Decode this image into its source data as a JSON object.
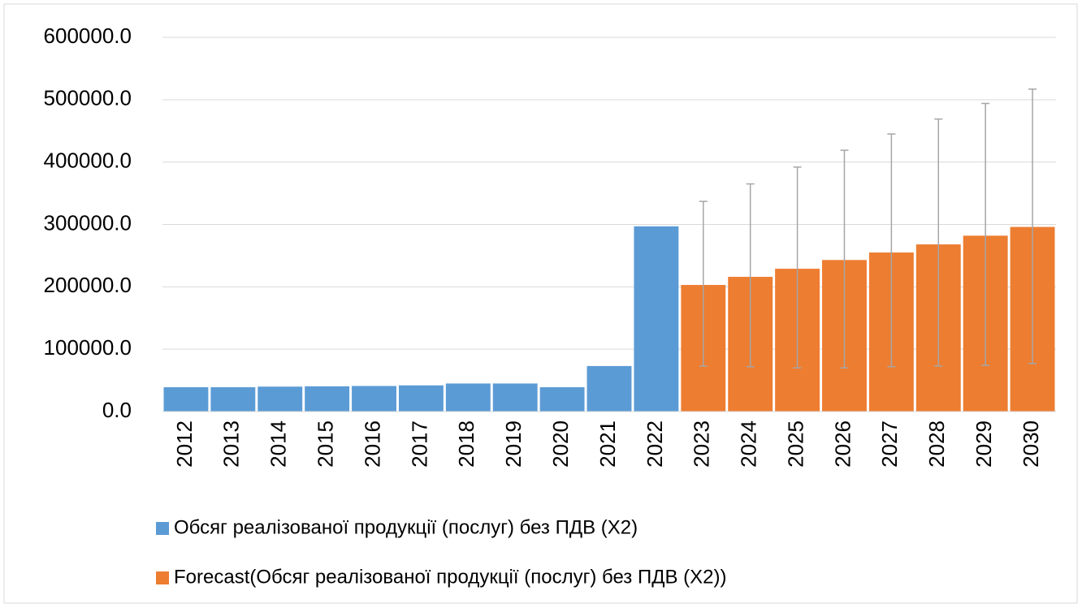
{
  "chart_data": {
    "type": "bar",
    "categories": [
      "2012",
      "2013",
      "2014",
      "2015",
      "2016",
      "2017",
      "2018",
      "2019",
      "2020",
      "2021",
      "2022",
      "2023",
      "2024",
      "2025",
      "2026",
      "2027",
      "2028",
      "2029",
      "2030"
    ],
    "series": [
      {
        "name": "Обсяг реалізованої продукції (послуг) без ПДВ (X2)",
        "color": "#5b9bd5",
        "values": [
          39000,
          39000,
          40000,
          40500,
          41000,
          42000,
          45000,
          45000,
          39000,
          73000,
          297000,
          null,
          null,
          null,
          null,
          null,
          null,
          null,
          null
        ]
      },
      {
        "name": "Forecast(Обсяг реалізованої продукції (послуг) без ПДВ (X2))",
        "color": "#ed7d31",
        "values": [
          null,
          null,
          null,
          null,
          null,
          null,
          null,
          null,
          null,
          null,
          null,
          203000,
          216000,
          229000,
          243000,
          255000,
          268000,
          282000,
          296000
        ],
        "error_low": [
          null,
          null,
          null,
          null,
          null,
          null,
          null,
          null,
          null,
          null,
          null,
          73000,
          72000,
          70000,
          70000,
          72000,
          73000,
          74000,
          77000
        ],
        "error_high": [
          null,
          null,
          null,
          null,
          null,
          null,
          null,
          null,
          null,
          null,
          null,
          337000,
          365000,
          392000,
          419000,
          445000,
          469000,
          494000,
          517000
        ]
      }
    ],
    "ylim": [
      0,
      600000
    ],
    "yticks": [
      {
        "value": 0,
        "label": "0.0"
      },
      {
        "value": 100000,
        "label": "100000.0"
      },
      {
        "value": 200000,
        "label": "200000.0"
      },
      {
        "value": 300000,
        "label": "300000.0"
      },
      {
        "value": 400000,
        "label": "400000.0"
      },
      {
        "value": 500000,
        "label": "500000.0"
      },
      {
        "value": 600000,
        "label": "600000.0"
      }
    ],
    "grid": true,
    "legend": "bottom"
  }
}
